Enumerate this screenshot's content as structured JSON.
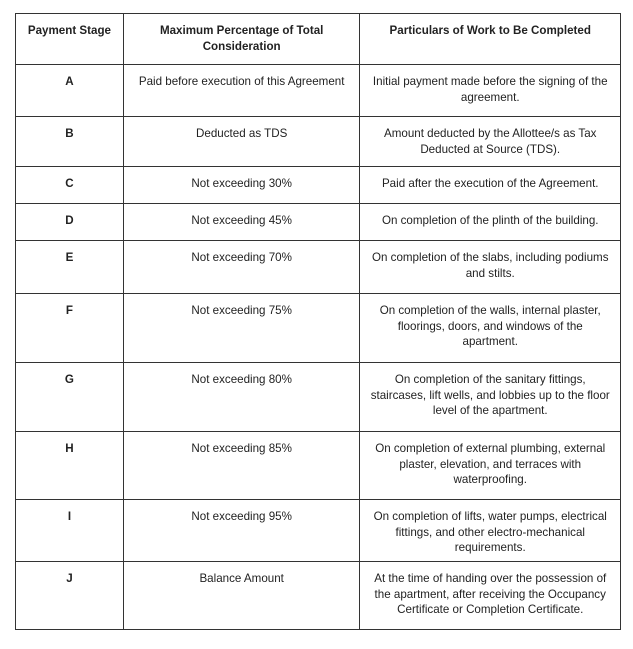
{
  "table": {
    "headers": [
      "Payment Stage",
      "Maximum Percentage of Total Consideration",
      "Particulars of Work to Be Completed"
    ],
    "rows": [
      {
        "stage": "A",
        "percentage": "Paid before execution of this Agreement",
        "particulars": "Initial payment made before the signing of the agreement."
      },
      {
        "stage": "B",
        "percentage": "Deducted as TDS",
        "particulars": "Amount deducted by the Allottee/s as Tax Deducted at Source (TDS)."
      },
      {
        "stage": "C",
        "percentage": "Not exceeding 30%",
        "particulars": "Paid after the execution of the Agreement."
      },
      {
        "stage": "D",
        "percentage": "Not exceeding 45%",
        "particulars": "On completion of the plinth of the building."
      },
      {
        "stage": "E",
        "percentage": "Not exceeding 70%",
        "particulars": "On completion of the slabs, including podiums and stilts."
      },
      {
        "stage": "F",
        "percentage": "Not exceeding 75%",
        "particulars": "On completion of the walls, internal plaster, floorings, doors, and windows of the apartment."
      },
      {
        "stage": "G",
        "percentage": "Not exceeding 80%",
        "particulars": "On completion of the sanitary fittings, staircases, lift wells, and lobbies up to the floor level of the apartment."
      },
      {
        "stage": "H",
        "percentage": "Not exceeding 85%",
        "particulars": "On completion of external plumbing, external plaster, elevation, and terraces with waterproofing."
      },
      {
        "stage": "I",
        "percentage": "Not exceeding 95%",
        "particulars": "On completion of lifts, water pumps, electrical fittings, and other electro-mechanical requirements."
      },
      {
        "stage": "J",
        "percentage": "Balance Amount",
        "particulars": "At the time of handing over the possession of the apartment, after receiving the Occupancy Certificate or Completion Certificate."
      }
    ]
  }
}
